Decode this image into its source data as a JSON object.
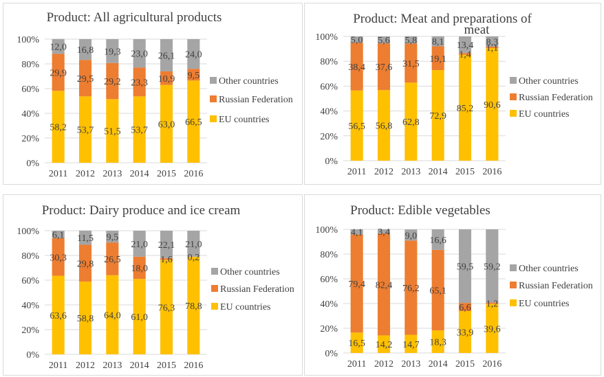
{
  "chart_data": [
    {
      "type": "bar",
      "stacked": true,
      "percent": true,
      "title": "Product: All agricultural products",
      "categories": [
        "2011",
        "2012",
        "2013",
        "2014",
        "2015",
        "2016"
      ],
      "series": [
        {
          "name": "EU countries",
          "values": [
            58.2,
            53.7,
            51.5,
            53.7,
            63.0,
            66.5
          ],
          "labels": [
            "58,2",
            "53,7",
            "51,5",
            "53,7",
            "63,0",
            "66,5"
          ]
        },
        {
          "name": "Russian Federation",
          "values": [
            29.9,
            29.5,
            29.2,
            23.3,
            10.9,
            9.5
          ],
          "labels": [
            "29,9",
            "29,5",
            "29,2",
            "23,3",
            "10,9",
            "9,5"
          ]
        },
        {
          "name": "Other countries",
          "values": [
            12.0,
            16.8,
            19.3,
            23.0,
            26.1,
            24.0
          ],
          "labels": [
            "12,0",
            "16,8",
            "19,3",
            "23,0",
            "26,1",
            "24,0"
          ]
        }
      ],
      "ylim": [
        0,
        100
      ],
      "yticks": [
        "0%",
        "20%",
        "40%",
        "60%",
        "80%",
        "100%"
      ],
      "legend": "right"
    },
    {
      "type": "bar",
      "stacked": true,
      "percent": true,
      "title": "Product: Meat and preparations of meat",
      "categories": [
        "2011",
        "2012",
        "2013",
        "2014",
        "2015",
        "2016"
      ],
      "series": [
        {
          "name": "EU countries",
          "values": [
            56.5,
            56.8,
            62.8,
            72.9,
            85.2,
            90.6
          ],
          "labels": [
            "56,5",
            "56,8",
            "62,8",
            "72,9",
            "85,2",
            "90,6"
          ]
        },
        {
          "name": "Russian Federation",
          "values": [
            38.4,
            37.6,
            31.5,
            19.1,
            1.4,
            1.1
          ],
          "labels": [
            "38,4",
            "37,6",
            "31,5",
            "19,1",
            "1,4",
            "1,1"
          ]
        },
        {
          "name": "Other countries",
          "values": [
            5.0,
            5.6,
            5.8,
            8.1,
            13.4,
            8.3
          ],
          "labels": [
            "5,0",
            "5,6",
            "5,8",
            "8,1",
            "13,4",
            "8,3"
          ]
        }
      ],
      "ylim": [
        0,
        100
      ],
      "yticks": [
        "0%",
        "20%",
        "40%",
        "60%",
        "80%",
        "100%"
      ],
      "legend": "right"
    },
    {
      "type": "bar",
      "stacked": true,
      "percent": true,
      "title": "Product: Dairy produce and ice cream",
      "categories": [
        "2011",
        "2012",
        "2013",
        "2014",
        "2015",
        "2016"
      ],
      "series": [
        {
          "name": "EU countries",
          "values": [
            63.6,
            58.8,
            64.0,
            61.0,
            76.3,
            78.8
          ],
          "labels": [
            "63,6",
            "58,8",
            "64,0",
            "61,0",
            "76,3",
            "78,8"
          ]
        },
        {
          "name": "Russian Federation",
          "values": [
            30.3,
            29.8,
            26.5,
            18.0,
            1.6,
            0.2
          ],
          "labels": [
            "30,3",
            "29,8",
            "26,5",
            "18,0",
            "1,6",
            "0,2"
          ]
        },
        {
          "name": "Other countries",
          "values": [
            6.1,
            11.5,
            9.5,
            21.0,
            22.1,
            21.0
          ],
          "labels": [
            "6,1",
            "11,5",
            "9,5",
            "21,0",
            "22,1",
            "21,0"
          ]
        }
      ],
      "ylim": [
        0,
        100
      ],
      "yticks": [
        "0%",
        "20%",
        "40%",
        "60%",
        "80%",
        "100%"
      ],
      "legend": "right"
    },
    {
      "type": "bar",
      "stacked": true,
      "percent": true,
      "title": "Product: Edible vegetables",
      "categories": [
        "2011",
        "2012",
        "2013",
        "2014",
        "2015",
        "2016"
      ],
      "series": [
        {
          "name": "EU countries",
          "values": [
            16.5,
            14.2,
            14.7,
            18.3,
            33.9,
            39.6
          ],
          "labels": [
            "16,5",
            "14,2",
            "14,7",
            "18,3",
            "33,9",
            "39,6"
          ]
        },
        {
          "name": "Russian Federation",
          "values": [
            79.4,
            82.4,
            76.2,
            65.1,
            6.6,
            1.2
          ],
          "labels": [
            "79,4",
            "82,4",
            "76,2",
            "65,1",
            "6,6",
            "1,2"
          ]
        },
        {
          "name": "Other countries",
          "values": [
            4.1,
            3.4,
            9.0,
            16.6,
            59.5,
            59.2
          ],
          "labels": [
            "4,1",
            "3,4",
            "9,0",
            "16,6",
            "59,5",
            "59,2"
          ]
        }
      ],
      "ylim": [
        0,
        100
      ],
      "yticks": [
        "0%",
        "20%",
        "40%",
        "60%",
        "80%",
        "100%"
      ],
      "legend": "right"
    }
  ],
  "colors": {
    "EU countries": "#FFC000",
    "Russian Federation": "#ED7D31",
    "Other countries": "#A5A5A5",
    "gridline": "#d9d9d9",
    "text": "#404040"
  }
}
